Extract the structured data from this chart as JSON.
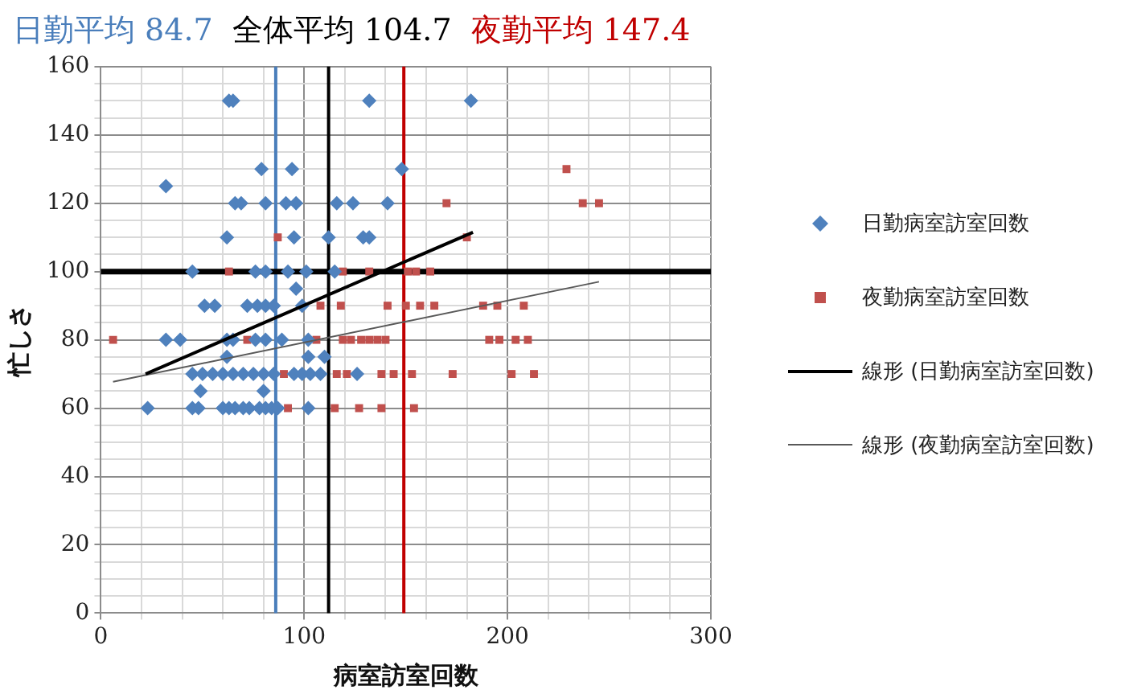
{
  "chart_data": {
    "type": "scatter",
    "xlabel": "病室訪室回数",
    "ylabel": "忙しさ",
    "xlim": [
      0,
      300
    ],
    "ylim": [
      0,
      160
    ],
    "xticks": [
      0,
      {
        "value": 20,
        "label": null
      },
      {
        "value": 40,
        "label": null
      },
      {
        "value": 60,
        "label": null
      },
      {
        "value": 80,
        "label": null
      },
      100,
      {
        "value": 120,
        "label": null
      },
      {
        "value": 140,
        "label": null
      },
      {
        "value": 160,
        "label": null
      },
      {
        "value": 180,
        "label": null
      },
      200,
      {
        "value": 220,
        "label": null
      },
      {
        "value": 240,
        "label": null
      },
      {
        "value": 260,
        "label": null
      },
      {
        "value": 280,
        "label": null
      },
      300
    ],
    "yticks": [
      0,
      {
        "value": 5,
        "label": null
      },
      {
        "value": 10,
        "label": null
      },
      {
        "value": 15,
        "label": null
      },
      20,
      {
        "value": 25,
        "label": null
      },
      {
        "value": 30,
        "label": null
      },
      {
        "value": 35,
        "label": null
      },
      40,
      {
        "value": 45,
        "label": null
      },
      {
        "value": 50,
        "label": null
      },
      {
        "value": 55,
        "label": null
      },
      60,
      {
        "value": 65,
        "label": null
      },
      {
        "value": 70,
        "label": null
      },
      {
        "value": 75,
        "label": null
      },
      80,
      {
        "value": 85,
        "label": null
      },
      {
        "value": 90,
        "label": null
      },
      {
        "value": 95,
        "label": null
      },
      100,
      {
        "value": 105,
        "label": null
      },
      {
        "value": 110,
        "label": null
      },
      {
        "value": 115,
        "label": null
      },
      120,
      {
        "value": 125,
        "label": null
      },
      {
        "value": 130,
        "label": null
      },
      {
        "value": 135,
        "label": null
      },
      140,
      {
        "value": 145,
        "label": null
      },
      {
        "value": 150,
        "label": null
      },
      {
        "value": 155,
        "label": null
      },
      160
    ],
    "grid": true,
    "legend": "right",
    "series": [
      {
        "name": "日勤病室訪室回数",
        "marker": "diamond",
        "color": "#4f81bd",
        "x": [
          63,
          65,
          132,
          182,
          79,
          94,
          148,
          32,
          66,
          69,
          81,
          91,
          96,
          116,
          124,
          141,
          62,
          95,
          112,
          129,
          132,
          45,
          76,
          81,
          92,
          101,
          115,
          96,
          51,
          56,
          72,
          77,
          81,
          85,
          99,
          32,
          39,
          62,
          65,
          76,
          81,
          89,
          102,
          62,
          102,
          110,
          45,
          50,
          55,
          60,
          65,
          70,
          75,
          80,
          85,
          95,
          99,
          103,
          108,
          126,
          49,
          80,
          23,
          45,
          48,
          60,
          63,
          66,
          70,
          73,
          78,
          81,
          84,
          87,
          102
        ],
        "values": [
          150,
          150,
          150,
          150,
          130,
          130,
          130,
          125,
          120,
          120,
          120,
          120,
          120,
          120,
          120,
          120,
          110,
          110,
          110,
          110,
          110,
          100,
          100,
          100,
          100,
          100,
          100,
          95,
          90,
          90,
          90,
          90,
          90,
          90,
          90,
          80,
          80,
          80,
          80,
          80,
          80,
          80,
          80,
          75,
          75,
          75,
          70,
          70,
          70,
          70,
          70,
          70,
          70,
          70,
          70,
          70,
          70,
          70,
          70,
          70,
          65,
          65,
          60,
          60,
          60,
          60,
          60,
          60,
          60,
          60,
          60,
          60,
          60,
          60,
          60
        ]
      },
      {
        "name": "夜勤病室訪室回数",
        "marker": "square",
        "color": "#c0504d",
        "x": [
          229,
          170,
          237,
          245,
          87,
          180,
          63,
          119,
          132,
          151,
          155,
          162,
          108,
          118,
          141,
          150,
          157,
          164,
          188,
          195,
          208,
          6,
          72,
          106,
          119,
          123,
          128,
          132,
          136,
          140,
          191,
          196,
          204,
          210,
          90,
          116,
          121,
          138,
          144,
          153,
          173,
          202,
          213,
          92,
          115,
          127,
          138,
          154
        ],
        "values": [
          130,
          120,
          120,
          120,
          110,
          110,
          100,
          100,
          100,
          100,
          100,
          100,
          90,
          90,
          90,
          90,
          90,
          90,
          90,
          90,
          90,
          80,
          80,
          80,
          80,
          80,
          80,
          80,
          80,
          80,
          80,
          80,
          80,
          80,
          70,
          70,
          70,
          70,
          70,
          70,
          70,
          70,
          70,
          60,
          60,
          60,
          60,
          60
        ]
      },
      {
        "name": "線形 (日勤病室訪室回数)",
        "type": "line",
        "marker": "none",
        "line_style": "solid",
        "color": "#000000",
        "x": [
          22,
          183
        ],
        "values": [
          70,
          111.5
        ]
      },
      {
        "name": "線形 (夜勤病室訪室回数)",
        "type": "line",
        "marker": "none",
        "line_style": "solid",
        "color": "#595959",
        "x": [
          6,
          245
        ],
        "values": [
          67.7,
          97
        ]
      }
    ],
    "ref_lines": [
      {
        "axis": "x",
        "value": 86,
        "label": "日勤平均 84.7",
        "color": "#4a7ebb"
      },
      {
        "axis": "x",
        "value": 112,
        "label": "全体平均 104.7",
        "color": "#000000"
      },
      {
        "axis": "x",
        "value": 149,
        "label": "夜勤平均 147.4",
        "color": "#c00000"
      },
      {
        "axis": "y",
        "value": 100,
        "color": "#000000"
      }
    ]
  }
}
